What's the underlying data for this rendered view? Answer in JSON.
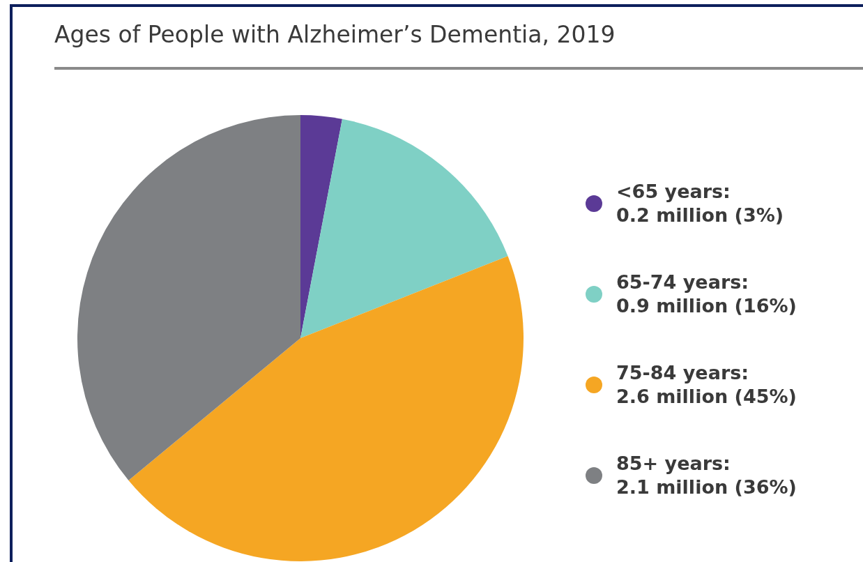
{
  "chart_data": {
    "type": "pie",
    "title": "Ages of People with Alzheimer’s Dementia, 2019",
    "categories": [
      "<65 years:\n0.2 million (3%)",
      "65-74 years:\n0.9 million (16%)",
      "75-84 years:\n2.6 million (45%)",
      "85+ years:\n2.1 million (36%)"
    ],
    "values": [
      3,
      16,
      45,
      36
    ],
    "colors": [
      "#5b3a96",
      "#7fd0c5",
      "#f5a623",
      "#7e8083"
    ],
    "legend": "right"
  }
}
